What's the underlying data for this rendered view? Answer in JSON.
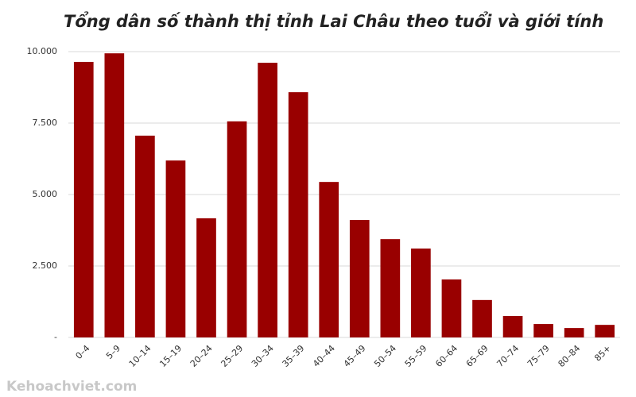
{
  "chart_data": {
    "type": "bar",
    "title": "Tổng dân số thành thị tỉnh Lai Châu theo tuổi và giới tính",
    "categories": [
      "0–4",
      "5–9",
      "10–14",
      "15–19",
      "20–24",
      "25–29",
      "30–34",
      "35–39",
      "40–44",
      "45–49",
      "50–54",
      "55–59",
      "60–64",
      "65–69",
      "70–74",
      "75–79",
      "80–84",
      "85+"
    ],
    "values": [
      9640,
      9940,
      7060,
      6190,
      4170,
      7560,
      9610,
      8580,
      5440,
      4110,
      3440,
      3110,
      2030,
      1310,
      750,
      470,
      330,
      440
    ],
    "color": "#990000",
    "ylim": [
      0,
      10000
    ],
    "yticks": [
      {
        "value": 0,
        "label": "-"
      },
      {
        "value": 2500,
        "label": "2.500"
      },
      {
        "value": 5000,
        "label": "5.000"
      },
      {
        "value": 7500,
        "label": "7.500"
      },
      {
        "value": 10000,
        "label": "10.000"
      }
    ],
    "grid": true,
    "watermark": "Kehoachviet.com"
  }
}
